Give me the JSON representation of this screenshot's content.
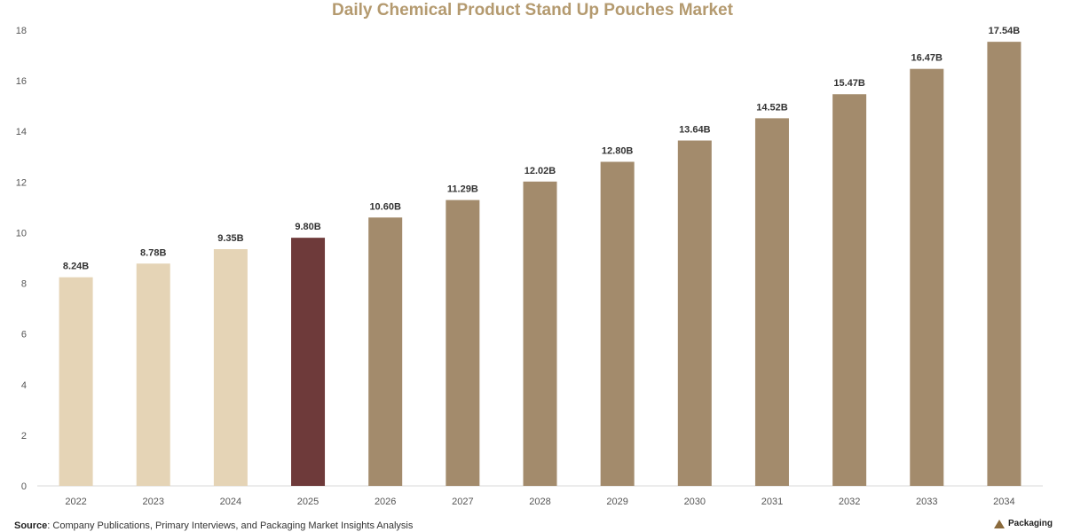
{
  "chart_data": {
    "type": "bar",
    "title": "Daily Chemical Product Stand Up Pouches Market",
    "categories": [
      "2022",
      "2023",
      "2024",
      "2025",
      "2026",
      "2027",
      "2028",
      "2029",
      "2030",
      "2031",
      "2032",
      "2033",
      "2034"
    ],
    "values": [
      8.24,
      8.78,
      9.35,
      9.8,
      10.6,
      11.29,
      12.02,
      12.8,
      13.64,
      14.52,
      15.47,
      16.47,
      17.54
    ],
    "data_labels": [
      "8.24B",
      "8.78B",
      "9.35B",
      "9.80B",
      "10.60B",
      "11.29B",
      "12.02B",
      "12.80B",
      "13.64B",
      "14.52B",
      "15.47B",
      "16.47B",
      "17.54B"
    ],
    "ylim": [
      0,
      18
    ],
    "yticks": [
      "0",
      "2",
      "4",
      "6",
      "8",
      "10",
      "12",
      "14",
      "16",
      "18"
    ],
    "bar_colors": [
      "#e5d4b6",
      "#e5d4b6",
      "#e5d4b6",
      "#6e3a3a",
      "#a38b6c",
      "#a38b6c",
      "#a38b6c",
      "#a38b6c",
      "#a38b6c",
      "#a38b6c",
      "#a38b6c",
      "#a38b6c",
      "#a38b6c"
    ],
    "grid": false
  },
  "colors": {
    "title": "#b49a6f",
    "historical": "#e5d4b6",
    "current": "#6e3a3a",
    "forecast": "#a38b6c"
  },
  "footer": {
    "source_label": "Source",
    "source_text": ": Company Publications, Primary Interviews, and Packaging Market Insights Analysis",
    "brand": "Packaging",
    "brand_icon": "house-icon"
  }
}
